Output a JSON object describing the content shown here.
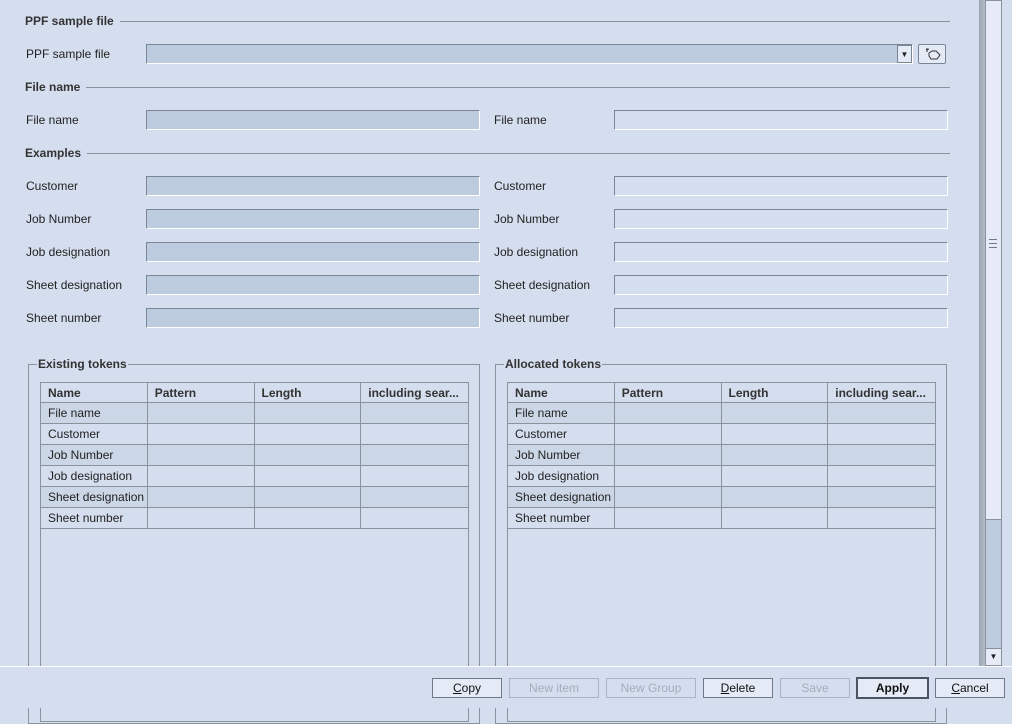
{
  "sections": {
    "ppf": "PPF sample file",
    "file_name": "File name",
    "examples": "Examples"
  },
  "ppf_row": {
    "label": "PPF sample file",
    "value": "",
    "dropdown_icon": "triangle-down",
    "browse_icon": "folder-open-icon"
  },
  "file_name_row": {
    "left_label": "File name",
    "left_value": "",
    "right_label": "File name",
    "right_value": ""
  },
  "examples": [
    {
      "label": "Customer",
      "left_value": "",
      "right_value": ""
    },
    {
      "label": "Job Number",
      "left_value": "",
      "right_value": ""
    },
    {
      "label": "Job designation",
      "left_value": "",
      "right_value": ""
    },
    {
      "label": "Sheet designation",
      "left_value": "",
      "right_value": ""
    },
    {
      "label": "Sheet number",
      "left_value": "",
      "right_value": ""
    }
  ],
  "existing_tokens": {
    "title": "Existing tokens",
    "columns": [
      "Name",
      "Pattern",
      "Length",
      "including sear..."
    ],
    "rows": [
      [
        "File name",
        "",
        "",
        ""
      ],
      [
        "Customer",
        "",
        "",
        ""
      ],
      [
        "Job Number",
        "",
        "",
        ""
      ],
      [
        "Job designation",
        "",
        "",
        ""
      ],
      [
        "Sheet designation",
        "",
        "",
        ""
      ],
      [
        "Sheet number",
        "",
        "",
        ""
      ]
    ]
  },
  "allocated_tokens": {
    "title": "Allocated tokens",
    "columns": [
      "Name",
      "Pattern",
      "Length",
      "including sear..."
    ],
    "rows": [
      [
        "File name",
        "",
        "",
        ""
      ],
      [
        "Customer",
        "",
        "",
        ""
      ],
      [
        "Job Number",
        "",
        "",
        ""
      ],
      [
        "Job designation",
        "",
        "",
        ""
      ],
      [
        "Sheet designation",
        "",
        "",
        ""
      ],
      [
        "Sheet number",
        "",
        "",
        ""
      ]
    ]
  },
  "buttons": {
    "copy": {
      "mn": "C",
      "rest": "opy"
    },
    "new_item": "New item",
    "new_group": "New Group",
    "delete": {
      "mn": "D",
      "rest": "elete"
    },
    "save": "Save",
    "apply": "Apply",
    "cancel": {
      "mn": "C",
      "rest": "ancel"
    }
  }
}
